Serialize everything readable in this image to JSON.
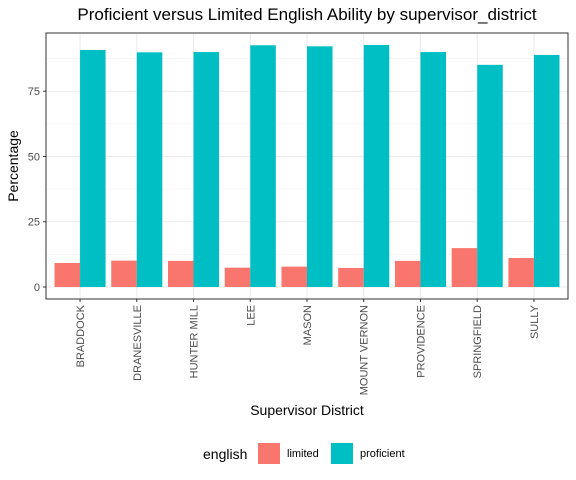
{
  "chart_data": {
    "type": "bar",
    "title": "Proficient versus Limited English Ability by supervisor_district",
    "xlabel": "Supervisor District",
    "ylabel": "Percentage",
    "categories": [
      "BRADDOCK",
      "DRANESVILLE",
      "HUNTER MILL",
      "LEE",
      "MASON",
      "MOUNT VERNON",
      "PROVIDENCE",
      "SPRINGFIELD",
      "SULLY"
    ],
    "series": [
      {
        "name": "limited",
        "color": "#F8766D",
        "values": [
          9.2,
          10.1,
          10.0,
          7.4,
          7.8,
          7.3,
          10.0,
          14.9,
          11.1
        ]
      },
      {
        "name": "proficient",
        "color": "#00BFC4",
        "values": [
          90.8,
          89.9,
          90.0,
          92.6,
          92.2,
          92.7,
          90.0,
          85.1,
          88.9
        ]
      }
    ],
    "y_ticks": [
      0,
      25,
      50,
      75
    ],
    "ylim": [
      -4.6,
      97.3
    ],
    "grid": true,
    "legend": {
      "title": "english",
      "position": "bottom"
    }
  }
}
